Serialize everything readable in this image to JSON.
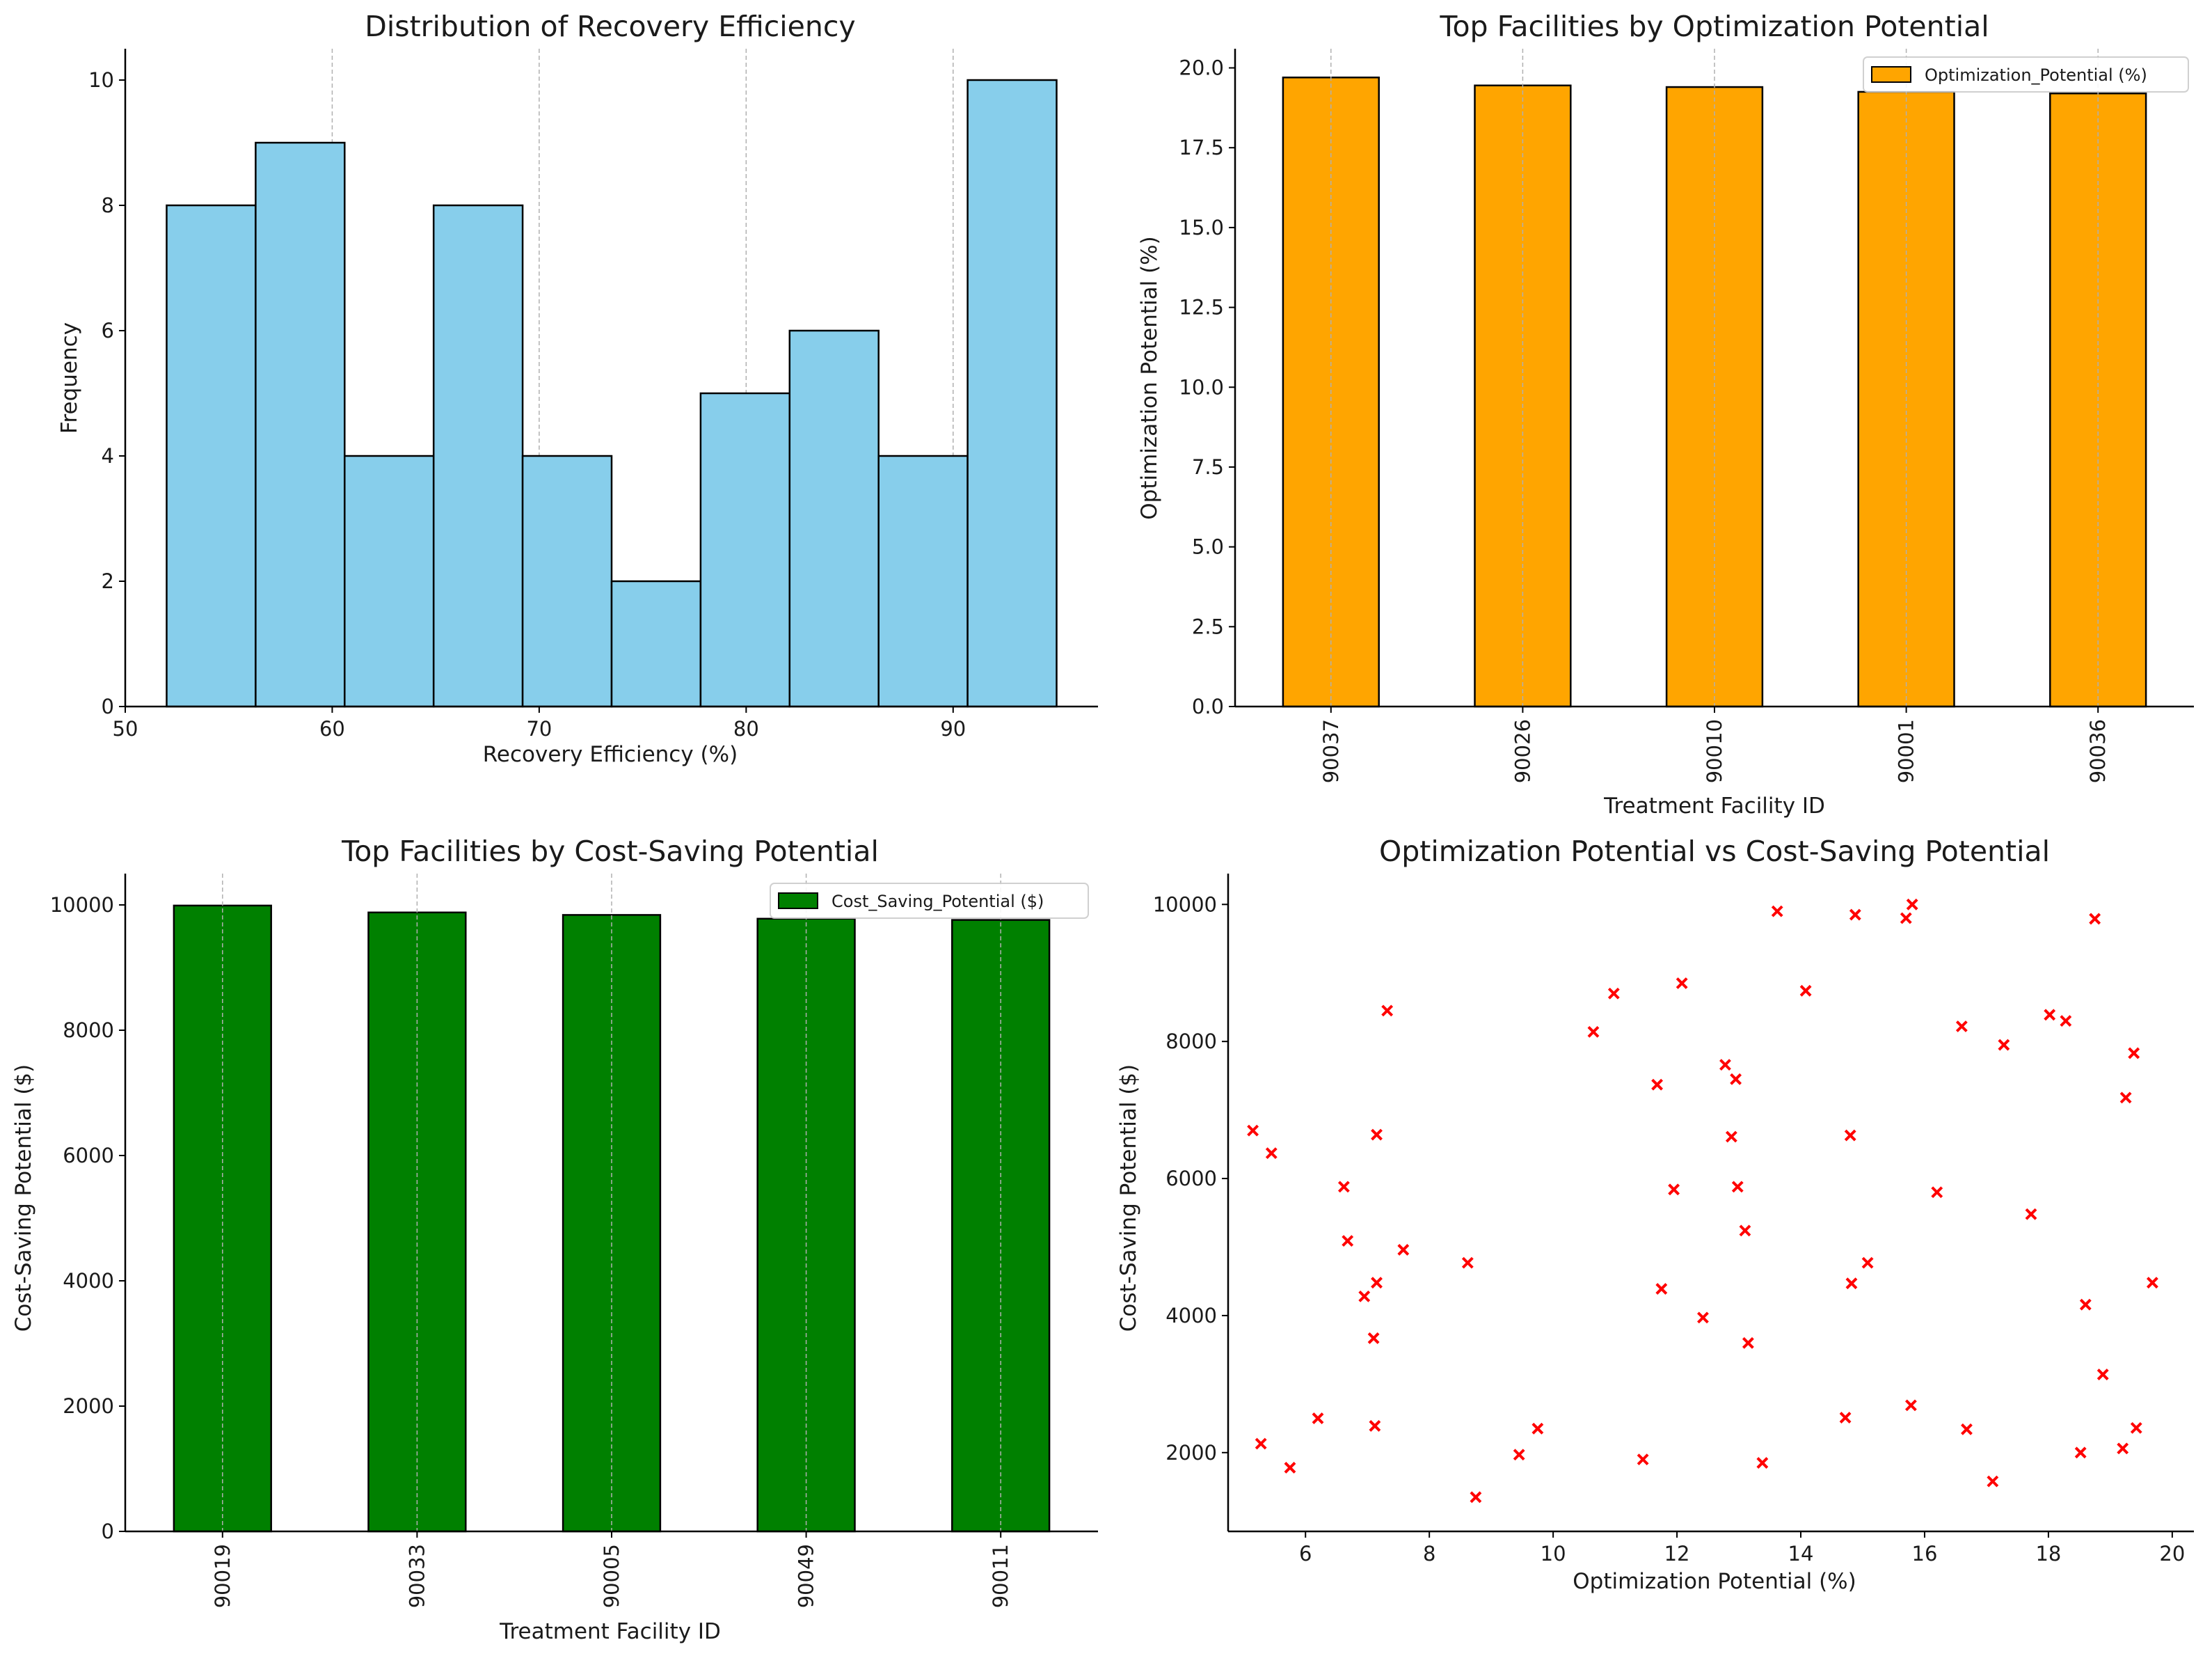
{
  "chart_data": [
    {
      "type": "histogram",
      "title": "Distribution of Recovery Efficiency",
      "xlabel": "Recovery Efficiency (%)",
      "ylabel": "Frequency",
      "xlim": [
        50,
        97
      ],
      "ylim": [
        0,
        10.5
      ],
      "xticks": [
        50,
        60,
        70,
        80,
        90
      ],
      "yticks": [
        0,
        2,
        4,
        6,
        8,
        10
      ],
      "grid": "x",
      "color": "#87CEEB",
      "bins": [
        {
          "start": 52.0,
          "end": 56.3,
          "count": 8
        },
        {
          "start": 56.3,
          "end": 60.6,
          "count": 9
        },
        {
          "start": 60.6,
          "end": 64.9,
          "count": 4
        },
        {
          "start": 64.9,
          "end": 69.2,
          "count": 8
        },
        {
          "start": 69.2,
          "end": 73.5,
          "count": 4
        },
        {
          "start": 73.5,
          "end": 77.8,
          "count": 2
        },
        {
          "start": 77.8,
          "end": 82.1,
          "count": 5
        },
        {
          "start": 82.1,
          "end": 86.4,
          "count": 6
        },
        {
          "start": 86.4,
          "end": 90.7,
          "count": 4
        },
        {
          "start": 90.7,
          "end": 95.0,
          "count": 10
        }
      ]
    },
    {
      "type": "bar",
      "title": "Top Facilities by Optimization Potential",
      "xlabel": "Treatment Facility ID",
      "ylabel": "Optimization Potential (%)",
      "categories": [
        "90037",
        "90026",
        "90010",
        "90001",
        "90036"
      ],
      "values": [
        19.7,
        19.45,
        19.4,
        19.25,
        19.2
      ],
      "ylim": [
        0,
        20.6
      ],
      "yticks": [
        "0.0",
        "2.5",
        "5.0",
        "7.5",
        "10.0",
        "12.5",
        "15.0",
        "17.5",
        "20.0"
      ],
      "legend": "Optimization_Potential (%)",
      "legend_position": "top-right",
      "grid": "x",
      "color": "#FFA500"
    },
    {
      "type": "bar",
      "title": "Top Facilities by Cost-Saving Potential",
      "xlabel": "Treatment Facility ID",
      "ylabel": "Cost-Saving Potential ($)",
      "categories": [
        "90019",
        "90033",
        "90005",
        "90049",
        "90011"
      ],
      "values": [
        9990,
        9880,
        9840,
        9780,
        9760
      ],
      "ylim": [
        0,
        10500
      ],
      "yticks": [
        "0",
        "2000",
        "4000",
        "6000",
        "8000",
        "10000"
      ],
      "legend": "Cost_Saving_Potential ($)",
      "legend_position": "top-right",
      "grid": "x",
      "color": "#008000"
    },
    {
      "type": "scatter",
      "title": "Optimization Potential vs Cost-Saving Potential",
      "xlabel": "Optimization Potential (%)",
      "ylabel": "Cost-Saving Potential ($)",
      "xlim": [
        4.75,
        20.35
      ],
      "ylim": [
        850,
        10450
      ],
      "xticks": [
        6,
        8,
        10,
        12,
        14,
        16,
        18,
        20
      ],
      "yticks": [
        2000,
        4000,
        6000,
        8000,
        10000
      ],
      "marker": "x",
      "color": "#FF0000",
      "points": [
        [
          5.15,
          6700
        ],
        [
          5.28,
          2130
        ],
        [
          5.45,
          6370
        ],
        [
          5.75,
          1780
        ],
        [
          6.2,
          2500
        ],
        [
          6.62,
          5880
        ],
        [
          6.68,
          5090
        ],
        [
          6.95,
          4280
        ],
        [
          7.1,
          3670
        ],
        [
          7.12,
          2390
        ],
        [
          7.15,
          6640
        ],
        [
          7.15,
          4480
        ],
        [
          7.32,
          8450
        ],
        [
          7.58,
          4960
        ],
        [
          8.62,
          4770
        ],
        [
          8.75,
          1350
        ],
        [
          9.45,
          1970
        ],
        [
          9.75,
          2350
        ],
        [
          10.65,
          8140
        ],
        [
          10.98,
          8700
        ],
        [
          11.45,
          1900
        ],
        [
          11.68,
          7370
        ],
        [
          11.75,
          4390
        ],
        [
          11.95,
          5840
        ],
        [
          12.08,
          8850
        ],
        [
          12.42,
          3970
        ],
        [
          12.78,
          7660
        ],
        [
          12.88,
          6610
        ],
        [
          12.95,
          7450
        ],
        [
          12.98,
          5880
        ],
        [
          13.1,
          5240
        ],
        [
          13.15,
          3600
        ],
        [
          13.38,
          1850
        ],
        [
          13.62,
          9900
        ],
        [
          14.08,
          8740
        ],
        [
          14.72,
          2510
        ],
        [
          14.8,
          6630
        ],
        [
          14.82,
          4470
        ],
        [
          14.88,
          9850
        ],
        [
          15.08,
          4770
        ],
        [
          15.7,
          9800
        ],
        [
          15.78,
          2690
        ],
        [
          15.8,
          10000
        ],
        [
          16.2,
          5800
        ],
        [
          16.6,
          8220
        ],
        [
          16.68,
          2340
        ],
        [
          17.1,
          1580
        ],
        [
          17.28,
          7950
        ],
        [
          17.72,
          5480
        ],
        [
          18.02,
          8390
        ],
        [
          18.28,
          8300
        ],
        [
          18.52,
          2000
        ],
        [
          18.6,
          4160
        ],
        [
          18.75,
          9790
        ],
        [
          18.88,
          3140
        ],
        [
          19.2,
          2060
        ],
        [
          19.25,
          7180
        ],
        [
          19.38,
          7830
        ],
        [
          19.42,
          2360
        ],
        [
          19.68,
          4480
        ]
      ]
    }
  ]
}
